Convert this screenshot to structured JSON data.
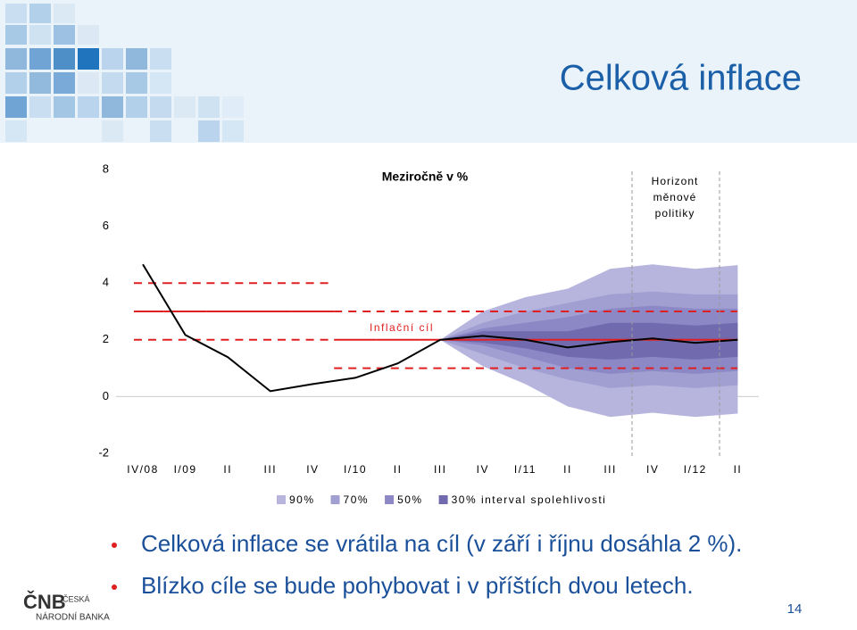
{
  "slide": {
    "title": "Celková inflace",
    "bullets": [
      "Celková inflace se vrátila na cíl (v září i říjnu dosáhla 2 %).",
      "Blízko cíle se bude pohybovat i v příštích dvou letech."
    ],
    "logo": [
      "ČNB",
      "ČESKÁ",
      "NÁRODNÍ BANKA"
    ],
    "page_number": 14
  },
  "chart_data": {
    "type": "line",
    "title": "Meziročně v %",
    "annotations": [
      "Horizont",
      "měnové",
      "politiky"
    ],
    "categories": [
      "IV/08",
      "I/09",
      "II",
      "III",
      "IV",
      "I/10",
      "II",
      "III",
      "IV",
      "I/11",
      "II",
      "III",
      "IV",
      "I/12",
      "II"
    ],
    "ylim": [
      -2,
      8
    ],
    "yticks": [
      -2,
      0,
      2,
      4,
      6,
      8
    ],
    "series": [
      {
        "color": "#000000",
        "values": [
          4.66,
          2.17,
          1.39,
          0.19,
          0.44,
          0.66,
          1.17,
          2.0,
          2.14,
          2.0,
          1.73,
          1.92,
          2.05,
          1.89,
          2.0
        ]
      }
    ],
    "bands": [
      {
        "name": "90%",
        "color": "#b7b5dd",
        "upper": [
          null,
          null,
          null,
          null,
          null,
          null,
          null,
          2.0,
          3.0,
          3.5,
          3.8,
          4.5,
          4.66,
          4.5,
          4.63
        ],
        "lower": [
          null,
          null,
          null,
          null,
          null,
          null,
          null,
          2.0,
          1.07,
          0.44,
          -0.35,
          -0.72,
          -0.57,
          -0.72,
          -0.6
        ]
      },
      {
        "name": "70%",
        "color": "#a19ed2",
        "upper": [
          null,
          null,
          null,
          null,
          null,
          null,
          null,
          2.0,
          2.6,
          3.0,
          3.3,
          3.6,
          3.7,
          3.6,
          3.6
        ],
        "lower": [
          null,
          null,
          null,
          null,
          null,
          null,
          null,
          2.0,
          1.5,
          1.0,
          0.6,
          0.3,
          0.4,
          0.3,
          0.4
        ]
      },
      {
        "name": "50%",
        "color": "#8c87c5",
        "upper": [
          null,
          null,
          null,
          null,
          null,
          null,
          null,
          2.0,
          2.4,
          2.6,
          2.8,
          3.1,
          3.2,
          3.1,
          3.1
        ],
        "lower": [
          null,
          null,
          null,
          null,
          null,
          null,
          null,
          2.0,
          1.8,
          1.4,
          1.0,
          0.8,
          0.9,
          0.8,
          0.9
        ]
      },
      {
        "name": "30% interval spolehlivosti",
        "color": "#716aaf",
        "upper": [
          null,
          null,
          null,
          null,
          null,
          null,
          null,
          2.0,
          2.3,
          2.3,
          2.3,
          2.6,
          2.6,
          2.5,
          2.6
        ],
        "lower": [
          null,
          null,
          null,
          null,
          null,
          null,
          null,
          2.0,
          1.9,
          1.7,
          1.4,
          1.3,
          1.4,
          1.3,
          1.4
        ]
      }
    ],
    "target": {
      "name": "Inflační cíl",
      "color": "#e02020",
      "values": [
        3,
        3,
        3,
        3,
        3,
        2,
        2,
        2,
        2,
        2,
        2,
        2,
        2,
        2,
        2
      ]
    },
    "tolerance": {
      "color": "#e02020",
      "upper": [
        4,
        4,
        4,
        4,
        4,
        3,
        3,
        3,
        3,
        3,
        3,
        3,
        3,
        3,
        3
      ],
      "lower": [
        2,
        2,
        2,
        2,
        2,
        1,
        1,
        1,
        1,
        1,
        1,
        1,
        1,
        1,
        1
      ]
    }
  }
}
